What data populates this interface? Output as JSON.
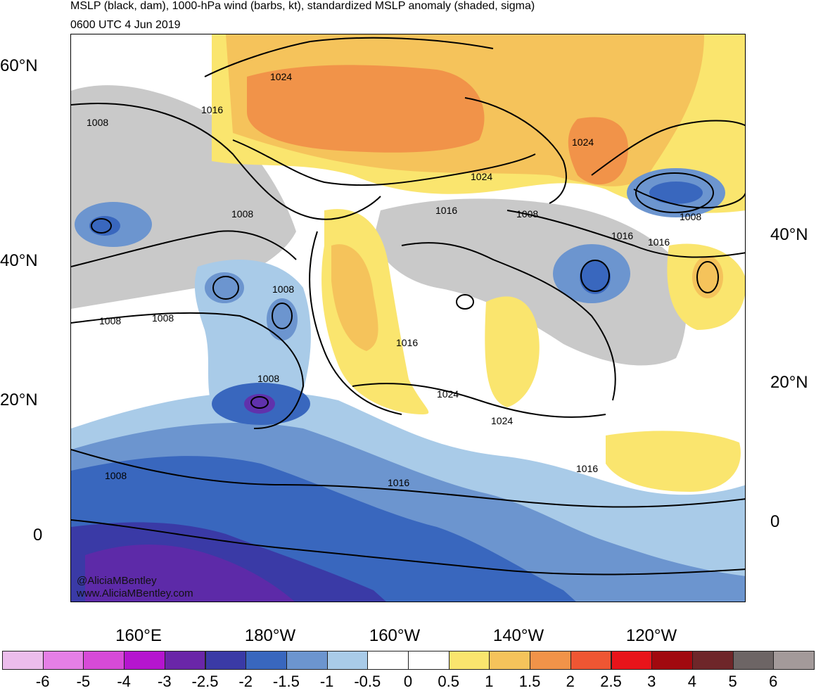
{
  "header": {
    "title": "MSLP (black, dam), 1000-hPa wind (barbs, kt), standardized MSLP anomaly (shaded, sigma)",
    "valid_time": "0600 UTC 4 Jun 2019"
  },
  "map": {
    "lat_labels_left": [
      "60°N",
      "40°N",
      "20°N",
      "0"
    ],
    "lat_labels_right": [
      "40°N",
      "20°N",
      "0"
    ],
    "lon_labels": [
      "160°E",
      "180°W",
      "160°W",
      "140°W",
      "120°W"
    ],
    "contour_labels": [
      "1024",
      "1016",
      "1008",
      "1008",
      "1008",
      "1008",
      "1008",
      "1008",
      "1016",
      "1024",
      "1024",
      "1016",
      "1024",
      "1016",
      "1008",
      "1016",
      "1016",
      "1024",
      "1008",
      "1016",
      "1008"
    ],
    "credit_line1": "@AliciaMBentley",
    "credit_line2": "www.AliciaMBentley.com"
  },
  "colorbar": {
    "labels": [
      "-6",
      "-5",
      "-4",
      "-3",
      "-2.5",
      "-2",
      "-1.5",
      "-1",
      "-0.5",
      "0",
      "0.5",
      "1",
      "1.5",
      "2",
      "2.5",
      "3",
      "4",
      "5",
      "6"
    ],
    "colors": [
      "#ecbdec",
      "#e57fe6",
      "#d74ad8",
      "#b515cf",
      "#6a26a8",
      "#3a3aa6",
      "#3967be",
      "#6c95cf",
      "#a9cbe8",
      "#ffffff",
      "#ffffff",
      "#fae56e",
      "#f5c35b",
      "#f19349",
      "#ef5633",
      "#e8141a",
      "#a1090f",
      "#6e2629",
      "#6d6565",
      "#a39a9a"
    ]
  }
}
